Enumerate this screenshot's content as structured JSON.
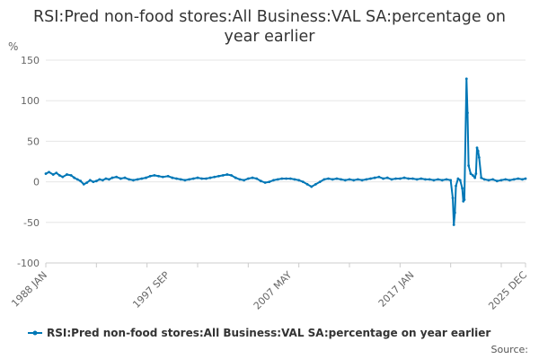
{
  "chart_data": {
    "type": "line",
    "title": "RSI:Pred non-food stores:All Business:VAL SA:percentage on year earlier",
    "ylabel": "%",
    "ylim": [
      -100,
      150
    ],
    "yticks": [
      -100,
      -50,
      0,
      50,
      100,
      150
    ],
    "xlim": [
      "1988-01",
      "2025-12"
    ],
    "xtick_labels": [
      "1988 JAN",
      "1997 SEP",
      "2007 MAY",
      "2017 JAN",
      "2025 DEC"
    ],
    "grid": "horizontal",
    "legend_placement": "bottom",
    "series": [
      {
        "name": "RSI:Pred non-food stores:All Business:VAL SA:percentage on year earlier",
        "color": "#0077b6",
        "points": [
          [
            "1988-01",
            10
          ],
          [
            "1988-04",
            12
          ],
          [
            "1988-08",
            9
          ],
          [
            "1988-11",
            11
          ],
          [
            "1989-02",
            8
          ],
          [
            "1989-05",
            6
          ],
          [
            "1989-09",
            9
          ],
          [
            "1990-01",
            8
          ],
          [
            "1990-04",
            5
          ],
          [
            "1990-07",
            3
          ],
          [
            "1990-10",
            1
          ],
          [
            "1991-01",
            -3
          ],
          [
            "1991-04",
            -1
          ],
          [
            "1991-07",
            2
          ],
          [
            "1991-10",
            0
          ],
          [
            "1992-01",
            1
          ],
          [
            "1992-04",
            3
          ],
          [
            "1992-07",
            2
          ],
          [
            "1992-10",
            4
          ],
          [
            "1993-01",
            3
          ],
          [
            "1993-04",
            5
          ],
          [
            "1993-08",
            6
          ],
          [
            "1993-12",
            4
          ],
          [
            "1994-04",
            5
          ],
          [
            "1994-08",
            3
          ],
          [
            "1994-12",
            2
          ],
          [
            "1995-04",
            3
          ],
          [
            "1995-08",
            4
          ],
          [
            "1995-12",
            5
          ],
          [
            "1996-04",
            7
          ],
          [
            "1996-08",
            8
          ],
          [
            "1996-12",
            7
          ],
          [
            "1997-04",
            6
          ],
          [
            "1997-09",
            7
          ],
          [
            "1998-01",
            5
          ],
          [
            "1998-05",
            4
          ],
          [
            "1998-09",
            3
          ],
          [
            "1999-01",
            2
          ],
          [
            "1999-05",
            3
          ],
          [
            "1999-09",
            4
          ],
          [
            "2000-01",
            5
          ],
          [
            "2000-05",
            4
          ],
          [
            "2000-09",
            4
          ],
          [
            "2001-01",
            5
          ],
          [
            "2001-05",
            6
          ],
          [
            "2001-09",
            7
          ],
          [
            "2002-01",
            8
          ],
          [
            "2002-05",
            9
          ],
          [
            "2002-09",
            8
          ],
          [
            "2003-01",
            5
          ],
          [
            "2003-05",
            3
          ],
          [
            "2003-09",
            2
          ],
          [
            "2004-01",
            4
          ],
          [
            "2004-05",
            5
          ],
          [
            "2004-09",
            4
          ],
          [
            "2005-01",
            1
          ],
          [
            "2005-05",
            -1
          ],
          [
            "2005-09",
            0
          ],
          [
            "2006-01",
            2
          ],
          [
            "2006-05",
            3
          ],
          [
            "2006-09",
            4
          ],
          [
            "2007-01",
            4
          ],
          [
            "2007-05",
            4
          ],
          [
            "2007-09",
            3
          ],
          [
            "2008-01",
            2
          ],
          [
            "2008-05",
            0
          ],
          [
            "2008-09",
            -3
          ],
          [
            "2009-01",
            -6
          ],
          [
            "2009-05",
            -3
          ],
          [
            "2009-09",
            0
          ],
          [
            "2010-01",
            3
          ],
          [
            "2010-05",
            4
          ],
          [
            "2010-09",
            3
          ],
          [
            "2011-01",
            4
          ],
          [
            "2011-05",
            3
          ],
          [
            "2011-09",
            2
          ],
          [
            "2012-01",
            3
          ],
          [
            "2012-05",
            2
          ],
          [
            "2012-09",
            3
          ],
          [
            "2013-01",
            2
          ],
          [
            "2013-05",
            3
          ],
          [
            "2013-09",
            4
          ],
          [
            "2014-01",
            5
          ],
          [
            "2014-05",
            6
          ],
          [
            "2014-09",
            4
          ],
          [
            "2015-01",
            5
          ],
          [
            "2015-05",
            3
          ],
          [
            "2015-09",
            4
          ],
          [
            "2016-01",
            4
          ],
          [
            "2016-05",
            5
          ],
          [
            "2016-09",
            4
          ],
          [
            "2017-01",
            4
          ],
          [
            "2017-05",
            3
          ],
          [
            "2017-09",
            4
          ],
          [
            "2018-01",
            3
          ],
          [
            "2018-05",
            3
          ],
          [
            "2018-09",
            2
          ],
          [
            "2019-01",
            3
          ],
          [
            "2019-05",
            2
          ],
          [
            "2019-09",
            3
          ],
          [
            "2020-01",
            2
          ],
          [
            "2020-03",
            -20
          ],
          [
            "2020-04",
            -53
          ],
          [
            "2020-05",
            -38
          ],
          [
            "2020-06",
            -5
          ],
          [
            "2020-08",
            4
          ],
          [
            "2020-10",
            2
          ],
          [
            "2020-12",
            -8
          ],
          [
            "2021-01",
            -24
          ],
          [
            "2021-02",
            -22
          ],
          [
            "2021-04",
            127
          ],
          [
            "2021-05",
            85
          ],
          [
            "2021-06",
            20
          ],
          [
            "2021-08",
            10
          ],
          [
            "2021-10",
            8
          ],
          [
            "2021-12",
            5
          ],
          [
            "2022-01",
            10
          ],
          [
            "2022-02",
            42
          ],
          [
            "2022-03",
            38
          ],
          [
            "2022-04",
            30
          ],
          [
            "2022-06",
            5
          ],
          [
            "2022-09",
            3
          ],
          [
            "2023-01",
            2
          ],
          [
            "2023-05",
            3
          ],
          [
            "2023-09",
            1
          ],
          [
            "2024-01",
            2
          ],
          [
            "2024-05",
            3
          ],
          [
            "2024-09",
            2
          ],
          [
            "2025-01",
            3
          ],
          [
            "2025-05",
            4
          ],
          [
            "2025-09",
            3
          ],
          [
            "2025-12",
            4
          ]
        ]
      }
    ],
    "source_label": "Source:"
  }
}
